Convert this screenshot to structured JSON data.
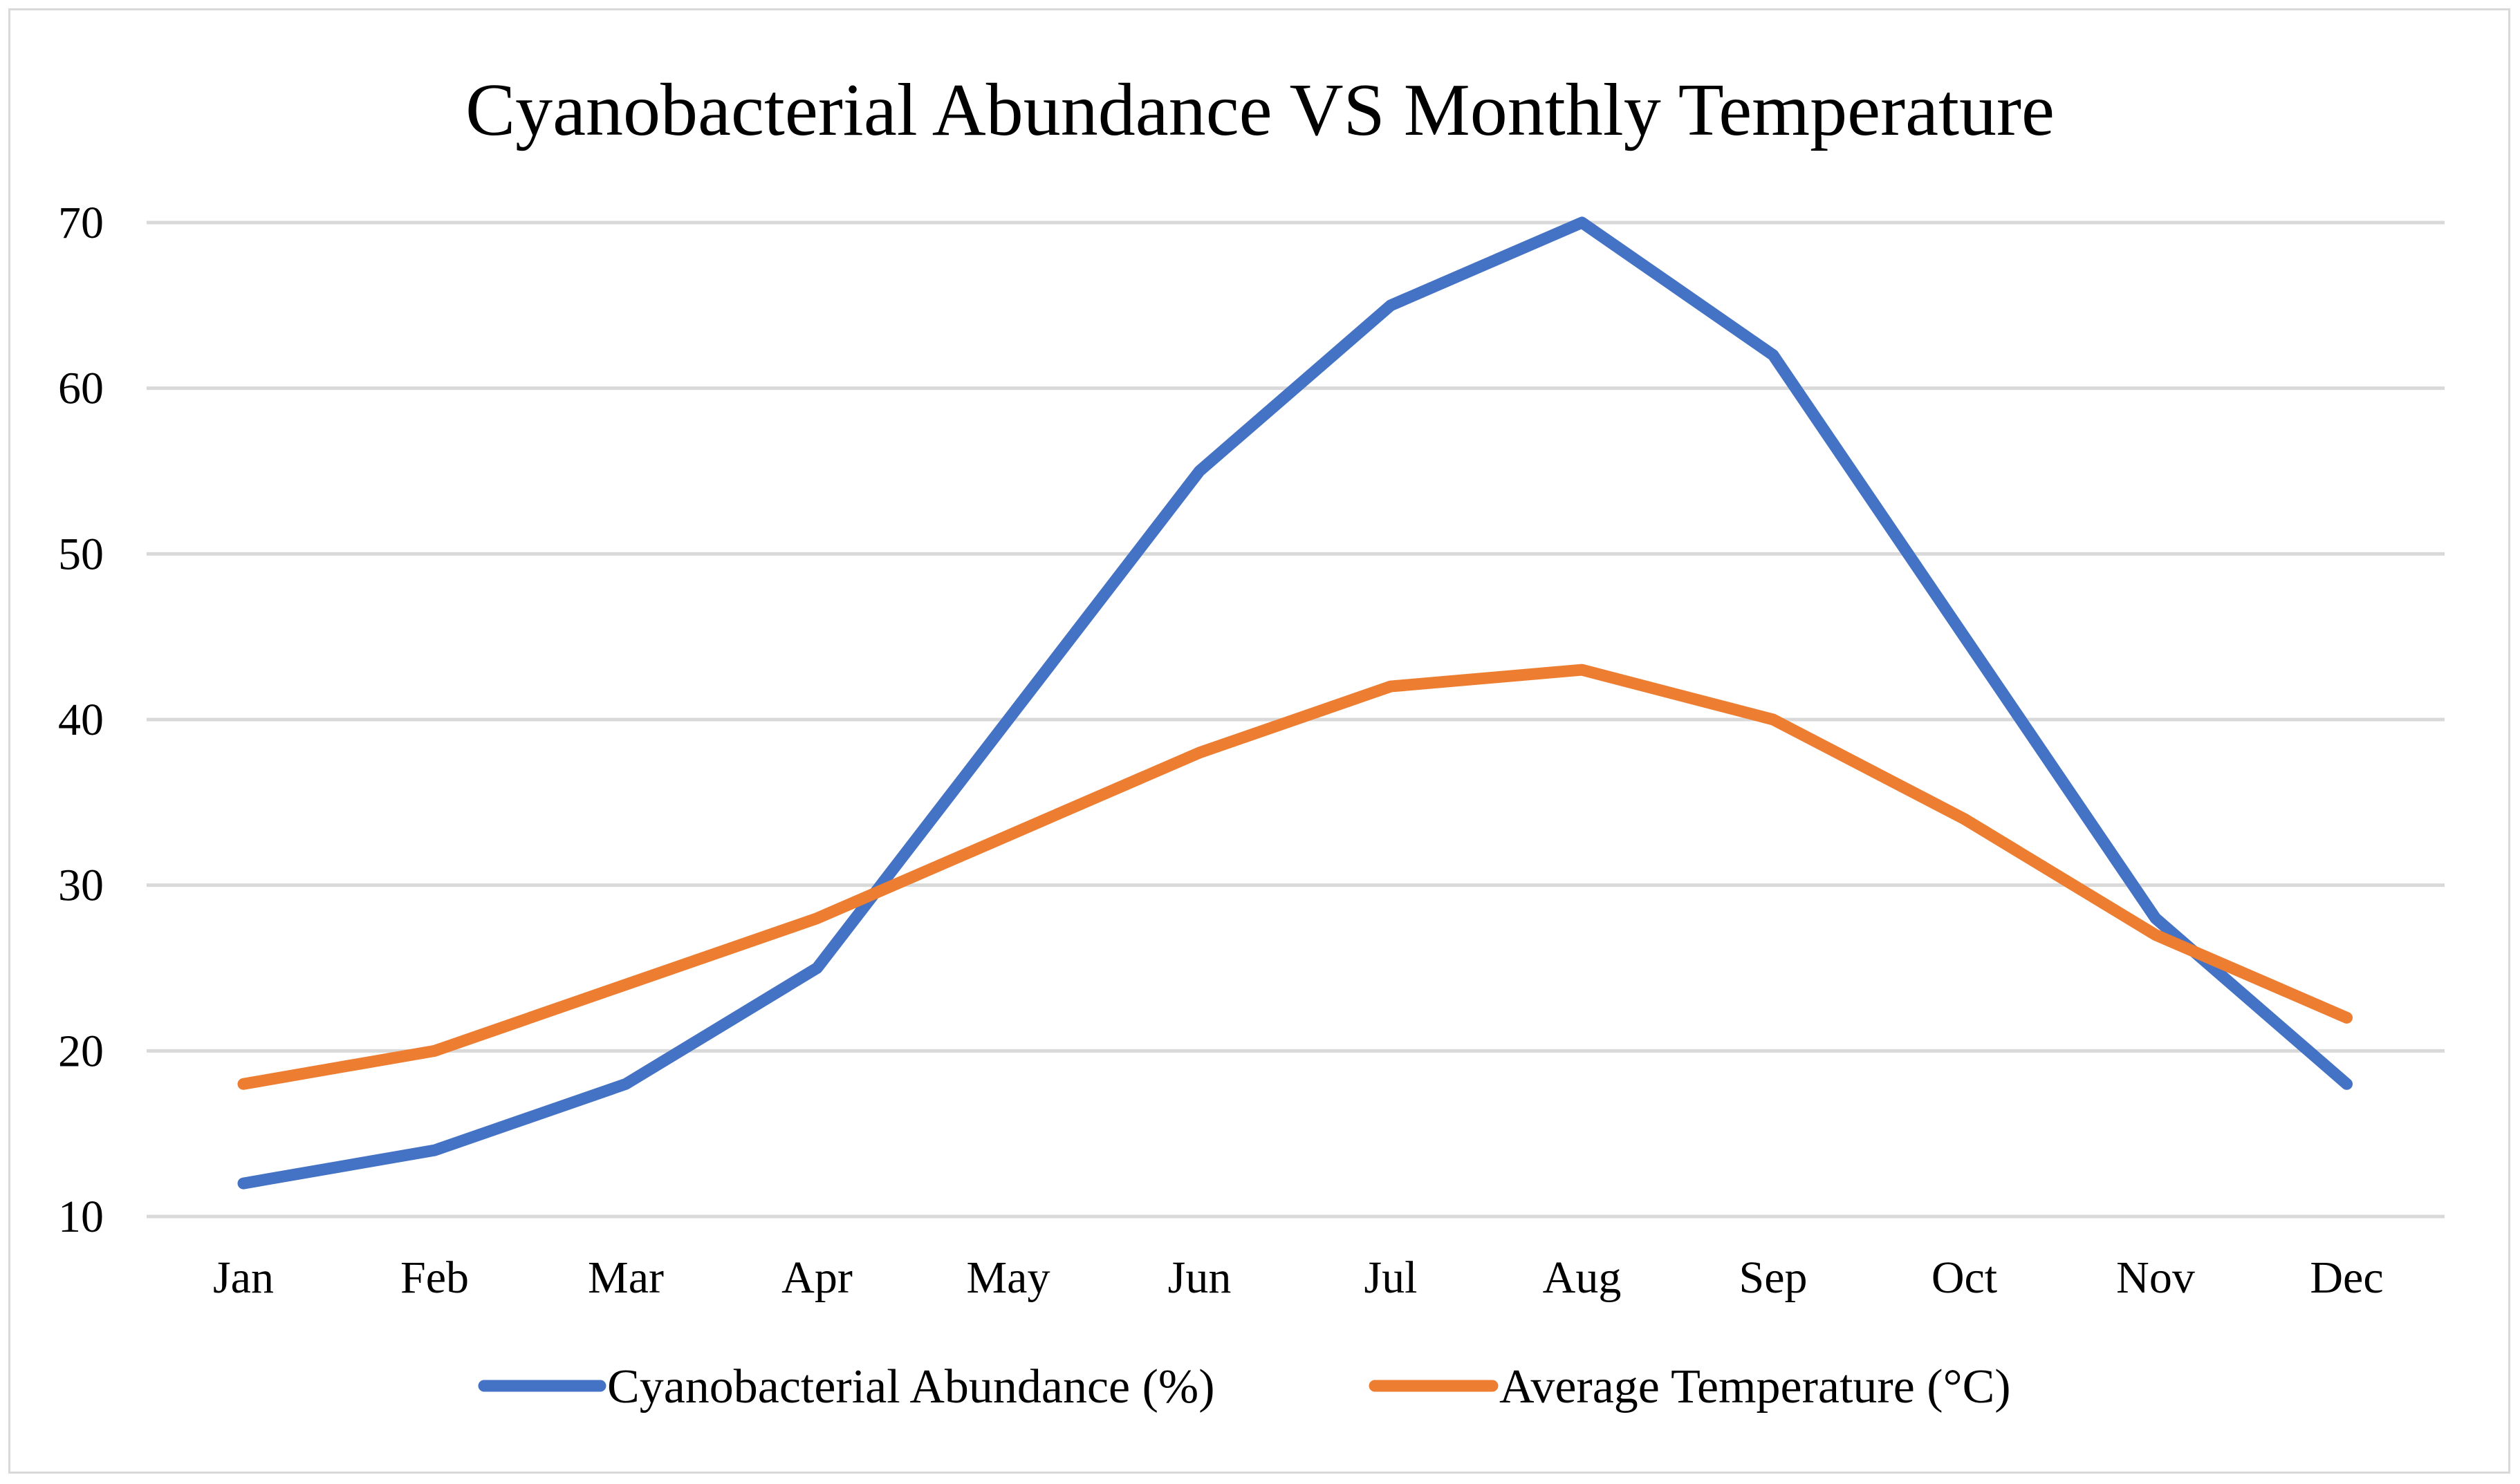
{
  "chart_data": {
    "type": "line",
    "title": "Cyanobacterial Abundance VS Monthly Temperature",
    "xlabel": "",
    "ylabel": "",
    "categories": [
      "Jan",
      "Feb",
      "Mar",
      "Apr",
      "May",
      "Jun",
      "Jul",
      "Aug",
      "Sep",
      "Oct",
      "Nov",
      "Dec"
    ],
    "ylim": [
      10,
      70
    ],
    "yticks": [
      "10",
      "20",
      "30",
      "40",
      "50",
      "60",
      "70"
    ],
    "grid": true,
    "legend_position": "bottom",
    "series": [
      {
        "name": "Cyanobacterial Abundance (%)",
        "color": "#4472c4",
        "values": [
          12,
          14,
          18,
          25,
          40,
          55,
          65,
          70,
          62,
          45,
          28,
          18
        ]
      },
      {
        "name": "Average Temperature (°C)",
        "color": "#ed7d31",
        "values": [
          18,
          20,
          24,
          28,
          33,
          38,
          42,
          43,
          40,
          34,
          27,
          22
        ]
      }
    ]
  }
}
